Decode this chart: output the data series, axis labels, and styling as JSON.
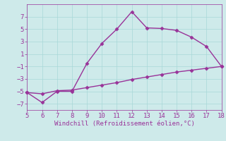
{
  "line1_x": [
    5,
    6,
    7,
    8,
    9,
    10,
    11,
    12,
    13,
    14,
    15,
    16,
    17,
    18
  ],
  "line1_y": [
    -5.2,
    -6.8,
    -5.0,
    -5.0,
    -0.5,
    2.7,
    5.0,
    7.8,
    5.2,
    5.1,
    4.8,
    3.7,
    2.2,
    -1.0
  ],
  "line2_x": [
    5,
    6,
    7,
    8,
    9,
    10,
    11,
    12,
    13,
    14,
    15,
    16,
    17,
    18
  ],
  "line2_y": [
    -5.2,
    -5.4,
    -4.9,
    -4.8,
    -4.4,
    -4.0,
    -3.6,
    -3.1,
    -2.7,
    -2.3,
    -1.9,
    -1.6,
    -1.3,
    -1.0
  ],
  "color": "#993399",
  "bg_color": "#ceeaea",
  "xlabel": "Windchill (Refroidissement éolien,°C)",
  "xlim": [
    5,
    18
  ],
  "ylim": [
    -8,
    9
  ],
  "xticks": [
    5,
    6,
    7,
    8,
    9,
    10,
    11,
    12,
    13,
    14,
    15,
    16,
    17,
    18
  ],
  "yticks": [
    -7,
    -5,
    -3,
    -1,
    1,
    3,
    5,
    7
  ],
  "grid_color": "#a8d8d8",
  "marker": "D",
  "markersize": 2.5,
  "linewidth": 1.0,
  "tick_fontsize": 6.5,
  "xlabel_fontsize": 6.5
}
